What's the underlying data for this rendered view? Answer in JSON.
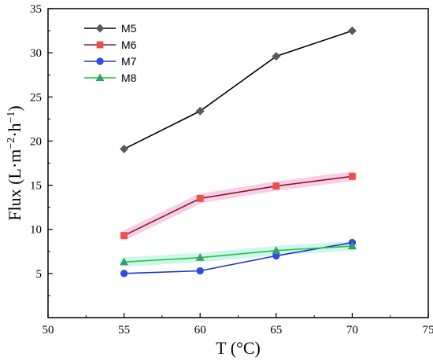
{
  "chart_data": {
    "type": "line",
    "xlabel": "T (°C)",
    "ylabel_main": "Flux (L·m",
    "ylabel_exp1": "−2",
    "ylabel_mid": "·h",
    "ylabel_exp2": "−1",
    "ylabel_end": ")",
    "xlim": [
      50,
      75
    ],
    "ylim": [
      0,
      35
    ],
    "xticks": [
      50,
      55,
      60,
      65,
      70,
      75
    ],
    "yticks": [
      5,
      10,
      15,
      20,
      25,
      30,
      35
    ],
    "grid": false,
    "legend_position": "top-left",
    "x": [
      55,
      60,
      65,
      70
    ],
    "series": [
      {
        "name": "M5",
        "values": [
          19.1,
          23.4,
          29.6,
          32.5
        ],
        "marker": "diamond",
        "line_color": "#000000",
        "marker_color": "#595959",
        "highlight": null
      },
      {
        "name": "M6",
        "values": [
          9.3,
          13.5,
          14.9,
          16.0
        ],
        "marker": "square",
        "line_color": "#8b1a1a",
        "marker_color": "#e8504a",
        "highlight": "#f5c6e6"
      },
      {
        "name": "M7",
        "values": [
          5.0,
          5.3,
          7.0,
          8.5
        ],
        "marker": "circle",
        "line_color": "#1c2fd6",
        "marker_color": "#2f4de0",
        "highlight": null
      },
      {
        "name": "M8",
        "values": [
          6.3,
          6.8,
          7.6,
          8.1
        ],
        "marker": "triangle",
        "line_color": "#27c52b",
        "marker_color": "#3a9b6c",
        "highlight": "#c8f3ef"
      }
    ]
  }
}
